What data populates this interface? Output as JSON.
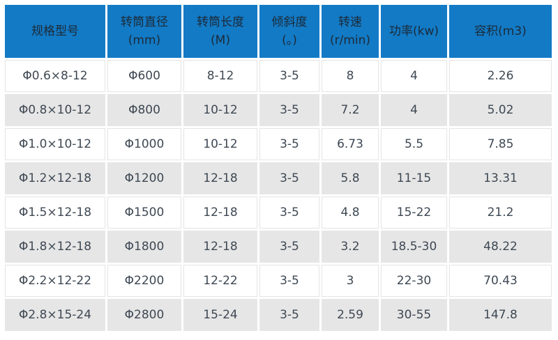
{
  "chart_data": {
    "type": "table",
    "title": "",
    "columns": [
      {
        "id": "model",
        "label": "规格型号",
        "sub": ""
      },
      {
        "id": "drum-diameter",
        "label": "转筒直径",
        "sub": "(mm)"
      },
      {
        "id": "drum-length",
        "label": "转筒长度",
        "sub": "(M)"
      },
      {
        "id": "incline",
        "label": "倾斜度",
        "sub": "(。)"
      },
      {
        "id": "speed",
        "label": "转速",
        "sub": "(r/min)"
      },
      {
        "id": "power",
        "label": "功率(kw)",
        "sub": ""
      },
      {
        "id": "volume",
        "label": "容积(m3)",
        "sub": ""
      }
    ],
    "rows": [
      [
        "Φ0.6×8-12",
        "Φ600",
        "8-12",
        "3-5",
        "8",
        "4",
        "2.26"
      ],
      [
        "Φ0.8×10-12",
        "Φ800",
        "10-12",
        "3-5",
        "7.2",
        "4",
        "5.02"
      ],
      [
        "Φ1.0×10-12",
        "Φ1000",
        "10-12",
        "3-5",
        "6.73",
        "5.5",
        "7.85"
      ],
      [
        "Φ1.2×12-18",
        "Φ1200",
        "12-18",
        "3-5",
        "5.8",
        "11-15",
        "13.31"
      ],
      [
        "Φ1.5×12-18",
        "Φ1500",
        "12-18",
        "3-5",
        "4.8",
        "15-22",
        "21.2"
      ],
      [
        "Φ1.8×12-18",
        "Φ1800",
        "12-18",
        "3-5",
        "3.2",
        "18.5-30",
        "48.22"
      ],
      [
        "Φ2.2×12-22",
        "Φ2200",
        "12-22",
        "3-5",
        "3",
        "22-30",
        "70.43"
      ],
      [
        "Φ2.8×15-24",
        "Φ2800",
        "15-24",
        "3-5",
        "2.59",
        "30-55",
        "147.8"
      ]
    ],
    "layout": {
      "zebra_striping": true,
      "header_position": "top"
    }
  },
  "colors": {
    "header_bg": "#137ac5",
    "header_text": "#1b2a38",
    "body_text": "#3e4853",
    "row_alt_bg": "#e6e6e6",
    "cell_border": "#e4e4e4"
  }
}
